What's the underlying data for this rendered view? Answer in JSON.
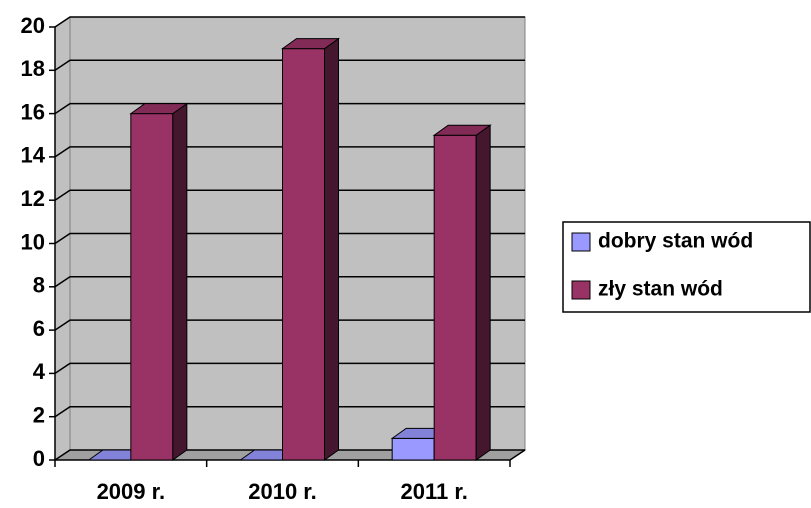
{
  "chart_data": {
    "type": "bar3d",
    "categories": [
      "2009 r.",
      "2010 r.",
      "2011 r."
    ],
    "series": [
      {
        "name": "dobry stan wód",
        "color": "#9999ff",
        "values": [
          0,
          0,
          1
        ]
      },
      {
        "name": "zły stan wód",
        "color": "#993366",
        "values": [
          16,
          19,
          15
        ]
      }
    ],
    "ylim": [
      0,
      20
    ],
    "yticks": [
      0,
      2,
      4,
      6,
      8,
      10,
      12,
      14,
      16,
      18,
      20
    ],
    "grid": true,
    "legend": "right"
  }
}
